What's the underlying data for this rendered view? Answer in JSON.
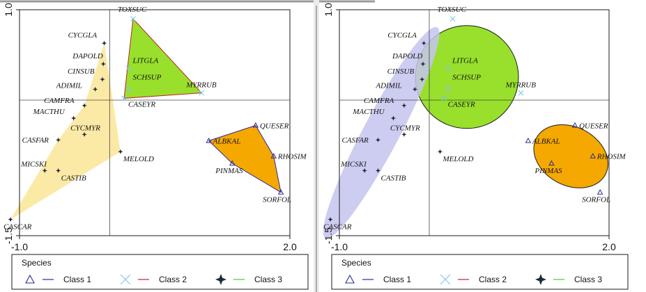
{
  "chart_data": [
    {
      "type": "scatter",
      "panel": "left",
      "xlim": [
        -1.0,
        2.0
      ],
      "ylim": [
        -1.5,
        1.0
      ],
      "x_ticks": [
        "-1.0",
        "2.0"
      ],
      "y_ticks": [
        "1.0",
        "-1.5"
      ],
      "grid": false,
      "legend_position": "bottom",
      "hull_style": "polygon",
      "points": [
        {
          "label": "TOXSUC",
          "x": 0.26,
          "y": 0.9,
          "cls": 2
        },
        {
          "label": "LITGLA",
          "x": 0.21,
          "y": 0.35,
          "cls": 2
        },
        {
          "label": "SCHSUP",
          "x": 0.21,
          "y": 0.12,
          "cls": 2
        },
        {
          "label": "MYRRUB",
          "x": 1.02,
          "y": 0.08,
          "cls": 2
        },
        {
          "label": "CASEYR",
          "x": 0.16,
          "y": 0.02,
          "cls": 2
        },
        {
          "label": "CYCGLA",
          "x": -0.06,
          "y": 0.63,
          "cls": 3
        },
        {
          "label": "DAPOLD",
          "x": -0.07,
          "y": 0.4,
          "cls": 3
        },
        {
          "label": "CINSUB",
          "x": -0.08,
          "y": 0.23,
          "cls": 3
        },
        {
          "label": "ADIMIL",
          "x": -0.16,
          "y": 0.12,
          "cls": 3
        },
        {
          "label": "CAMFRA",
          "x": -0.28,
          "y": -0.06,
          "cls": 3
        },
        {
          "label": "MACTHU",
          "x": -0.4,
          "y": -0.2,
          "cls": 3
        },
        {
          "label": "CASFAR",
          "x": -0.57,
          "y": -0.44,
          "cls": 3
        },
        {
          "label": "CYCMYR",
          "x": -0.28,
          "y": -0.38,
          "cls": 3
        },
        {
          "label": "MICSKI",
          "x": -0.72,
          "y": -0.78,
          "cls": 3
        },
        {
          "label": "CASTIB",
          "x": -0.57,
          "y": -0.78,
          "cls": 3
        },
        {
          "label": "MELOLD",
          "x": 0.12,
          "y": -0.57,
          "cls": 3
        },
        {
          "label": "CASCAR",
          "x": -1.1,
          "y": -1.32,
          "cls": 3
        },
        {
          "label": "QUESER",
          "x": 1.62,
          "y": -0.28,
          "cls": 1
        },
        {
          "label": "ALBKAL",
          "x": 1.1,
          "y": -0.45,
          "cls": 1
        },
        {
          "label": "RHOSIM",
          "x": 1.82,
          "y": -0.62,
          "cls": 1
        },
        {
          "label": "PINMAS",
          "x": 1.36,
          "y": -0.7,
          "cls": 1
        },
        {
          "label": "SORFOL",
          "x": 1.9,
          "y": -1.02,
          "cls": 1
        }
      ]
    },
    {
      "type": "scatter",
      "panel": "right",
      "xlim": [
        -1.0,
        2.0
      ],
      "ylim": [
        -1.5,
        1.0
      ],
      "x_ticks": [
        "-1.0",
        "2.0"
      ],
      "y_ticks": [
        "1.0",
        "-1.5"
      ],
      "grid": false,
      "legend_position": "bottom",
      "hull_style": "ellipse",
      "points": [
        {
          "label": "TOXSUC",
          "x": 0.26,
          "y": 0.9,
          "cls": 2
        },
        {
          "label": "LITGLA",
          "x": 0.21,
          "y": 0.35,
          "cls": 2
        },
        {
          "label": "SCHSUP",
          "x": 0.21,
          "y": 0.12,
          "cls": 2
        },
        {
          "label": "MYRRUB",
          "x": 1.02,
          "y": 0.08,
          "cls": 2
        },
        {
          "label": "CASEYR",
          "x": 0.16,
          "y": 0.02,
          "cls": 2
        },
        {
          "label": "CYCGLA",
          "x": -0.06,
          "y": 0.63,
          "cls": 3
        },
        {
          "label": "DAPOLD",
          "x": -0.07,
          "y": 0.4,
          "cls": 3
        },
        {
          "label": "CINSUB",
          "x": -0.08,
          "y": 0.23,
          "cls": 3
        },
        {
          "label": "ADIMIL",
          "x": -0.16,
          "y": 0.12,
          "cls": 3
        },
        {
          "label": "CAMFRA",
          "x": -0.28,
          "y": -0.06,
          "cls": 3
        },
        {
          "label": "MACTHU",
          "x": -0.4,
          "y": -0.2,
          "cls": 3
        },
        {
          "label": "CASFAR",
          "x": -0.57,
          "y": -0.44,
          "cls": 3
        },
        {
          "label": "CYCMYR",
          "x": -0.28,
          "y": -0.38,
          "cls": 3
        },
        {
          "label": "MICSKI",
          "x": -0.72,
          "y": -0.78,
          "cls": 3
        },
        {
          "label": "CASTIB",
          "x": -0.57,
          "y": -0.78,
          "cls": 3
        },
        {
          "label": "MELOLD",
          "x": 0.12,
          "y": -0.57,
          "cls": 3
        },
        {
          "label": "CASCAR",
          "x": -1.1,
          "y": -1.32,
          "cls": 3
        },
        {
          "label": "QUESER",
          "x": 1.62,
          "y": -0.28,
          "cls": 1
        },
        {
          "label": "ALBKAL",
          "x": 1.1,
          "y": -0.45,
          "cls": 1
        },
        {
          "label": "RHOSIM",
          "x": 1.82,
          "y": -0.62,
          "cls": 1
        },
        {
          "label": "PINMAS",
          "x": 1.36,
          "y": -0.7,
          "cls": 1
        },
        {
          "label": "SORFOL",
          "x": 1.9,
          "y": -1.02,
          "cls": 1
        }
      ]
    }
  ],
  "legend": {
    "title": "Species",
    "items": [
      {
        "label": "Class 1",
        "marker": "triangle-icon",
        "color": "#2a2a9c",
        "line_color": "#2a2a9c"
      },
      {
        "label": "Class 2",
        "marker": "x-icon",
        "color": "#7cc6ea",
        "line_color": "#c0202a"
      },
      {
        "label": "Class 3",
        "marker": "star4-icon",
        "color": "#1e2a3a",
        "line_color": "#58c030"
      }
    ]
  },
  "colors": {
    "class1_fill": "#f5a800",
    "class2_fill": "#98e02c",
    "class3_fill_left": "#fbe9a6",
    "class3_fill_right": "#c4c4f0"
  }
}
